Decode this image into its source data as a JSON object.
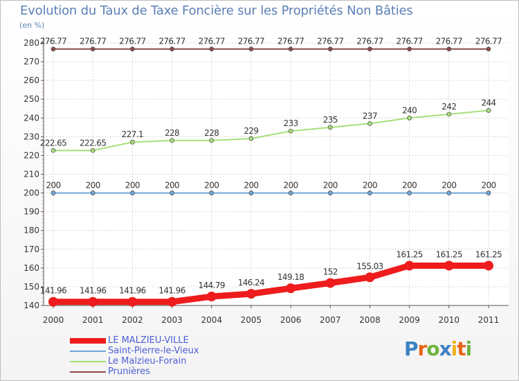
{
  "chart_data": {
    "type": "line",
    "title": "Evolution du Taux de Taxe Foncière sur les Propriétés Non Bâties",
    "ylabel": "(en %)",
    "xlabel": "",
    "ylim": [
      140,
      280
    ],
    "yticks": [
      140,
      150,
      160,
      170,
      180,
      190,
      200,
      210,
      220,
      230,
      240,
      250,
      260,
      270,
      280
    ],
    "categories": [
      "2000",
      "2001",
      "2002",
      "2003",
      "2004",
      "2005",
      "2006",
      "2007",
      "2008",
      "2009",
      "2010",
      "2011"
    ],
    "series": [
      {
        "name": "LE MALZIEU-VILLE",
        "color": "#ee1c1c",
        "thick": true,
        "values": [
          141.96,
          141.96,
          141.96,
          141.96,
          144.79,
          146.24,
          149.18,
          152,
          155.03,
          161.25,
          161.25,
          161.25
        ],
        "labels": [
          "141.96",
          "141.96",
          "141.96",
          "141.96",
          "144.79",
          "146.24",
          "149.18",
          "152",
          "155.03",
          "161.25",
          "161.25",
          "161.25"
        ]
      },
      {
        "name": "Saint-Pierre-le-Vieux",
        "color": "#6fa6d8",
        "thick": false,
        "values": [
          200,
          200,
          200,
          200,
          200,
          200,
          200,
          200,
          200,
          200,
          200,
          200
        ],
        "labels": [
          "200",
          "200",
          "200",
          "200",
          "200",
          "200",
          "200",
          "200",
          "200",
          "200",
          "200",
          "200"
        ]
      },
      {
        "name": "Le Malzieu-Forain",
        "color": "#a6df7a",
        "thick": false,
        "values": [
          222.65,
          222.65,
          227.1,
          228,
          228,
          229,
          233,
          235,
          237,
          240,
          242,
          244
        ],
        "labels": [
          "222.65",
          "222.65",
          "227.1",
          "228",
          "228",
          "229",
          "233",
          "235",
          "237",
          "240",
          "242",
          "244"
        ]
      },
      {
        "name": "Prunières",
        "color": "#8c4a4a",
        "thick": false,
        "values": [
          276.77,
          276.77,
          276.77,
          276.77,
          276.77,
          276.77,
          276.77,
          276.77,
          276.77,
          276.77,
          276.77,
          276.77
        ],
        "labels": [
          "276.77",
          "276.77",
          "276.77",
          "276.77",
          "276.77",
          "276.77",
          "276.77",
          "276.77",
          "276.77",
          "276.77",
          "276.77",
          "276.77"
        ]
      }
    ]
  },
  "brand": {
    "letters": [
      "P",
      "r",
      "o",
      "x",
      "i",
      "t",
      "i"
    ],
    "colors": [
      "#3b82c4",
      "#e8651a",
      "#6db33f",
      "#3b82c4",
      "#f2b21b",
      "#e8651a",
      "#6db33f"
    ]
  }
}
